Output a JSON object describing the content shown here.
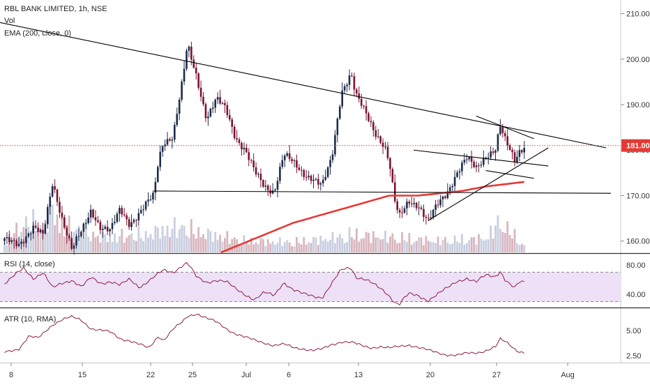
{
  "header": {
    "symbol_line": "RBL BANK LIMITED, 1h, NSE",
    "vol_label": "Vol",
    "ema_label": "EMA (200, close, 0)"
  },
  "price_tag": "181.00",
  "colors": {
    "up": "#1e2b4a",
    "down": "#7b1230",
    "ema": "#e53935",
    "rsi": "#8e1a47",
    "rsi_band": "#ede0f7",
    "atr": "#8e1a47",
    "trendline": "#000000",
    "price_tag": "#e53935",
    "vol": "#d9b6be"
  },
  "chart_data": [
    {
      "type": "line",
      "role": "price",
      "title": "RBL BANK LIMITED, 1h, NSE",
      "x_tick_labels": [
        "8",
        "15",
        "22",
        "25",
        "Jul",
        "6",
        "13",
        "20",
        "27",
        "Aug"
      ],
      "y_ticks": [
        160,
        170,
        180,
        190,
        200,
        210
      ],
      "ylim": [
        157.5,
        213
      ],
      "last_price": 181.0,
      "close_anchors": [
        [
          0,
          160
        ],
        [
          3,
          159.5
        ],
        [
          6,
          163
        ],
        [
          8,
          161
        ],
        [
          10,
          173
        ],
        [
          12,
          165
        ],
        [
          14,
          158
        ],
        [
          16,
          162
        ],
        [
          18,
          167
        ],
        [
          20,
          163
        ],
        [
          22,
          162
        ],
        [
          24,
          167
        ],
        [
          26,
          164
        ],
        [
          28,
          166
        ],
        [
          31,
          170
        ],
        [
          32,
          178
        ],
        [
          33,
          182
        ],
        [
          35,
          183
        ],
        [
          37,
          195
        ],
        [
          38,
          203
        ],
        [
          40,
          196
        ],
        [
          42,
          187
        ],
        [
          44,
          191
        ],
        [
          46,
          189
        ],
        [
          48,
          183
        ],
        [
          50,
          180
        ],
        [
          52,
          175
        ],
        [
          54,
          172
        ],
        [
          56,
          171
        ],
        [
          58,
          179
        ],
        [
          60,
          177
        ],
        [
          62,
          175
        ],
        [
          64,
          174
        ],
        [
          66,
          172
        ],
        [
          68,
          178
        ],
        [
          70,
          193
        ],
        [
          72,
          197
        ],
        [
          73,
          192
        ],
        [
          75,
          188
        ],
        [
          77,
          184
        ],
        [
          79,
          181
        ],
        [
          80,
          177
        ],
        [
          81,
          169
        ],
        [
          82,
          165
        ],
        [
          83,
          167
        ],
        [
          84,
          169
        ],
        [
          86,
          168
        ],
        [
          88,
          164
        ],
        [
          90,
          168
        ],
        [
          92,
          171
        ],
        [
          94,
          175
        ],
        [
          96,
          178
        ],
        [
          98,
          176
        ],
        [
          100,
          179
        ],
        [
          102,
          180
        ],
        [
          103,
          185
        ],
        [
          104,
          182
        ],
        [
          105,
          180
        ],
        [
          106,
          178
        ],
        [
          107,
          180
        ],
        [
          108,
          181
        ]
      ],
      "ema_anchors": [
        [
          45,
          157.5
        ],
        [
          60,
          164
        ],
        [
          70,
          167
        ],
        [
          80,
          170
        ],
        [
          86,
          170
        ],
        [
          95,
          171
        ],
        [
          100,
          172
        ],
        [
          108,
          173
        ]
      ],
      "volume_anchors": [
        [
          0,
          8
        ],
        [
          5,
          25
        ],
        [
          8,
          18
        ],
        [
          10,
          33
        ],
        [
          12,
          22
        ],
        [
          20,
          12
        ],
        [
          30,
          14
        ],
        [
          33,
          18
        ],
        [
          37,
          20
        ],
        [
          40,
          16
        ],
        [
          50,
          9
        ],
        [
          60,
          8
        ],
        [
          70,
          12
        ],
        [
          72,
          14
        ],
        [
          80,
          12
        ],
        [
          90,
          9
        ],
        [
          100,
          11
        ],
        [
          103,
          24
        ],
        [
          108,
          5
        ]
      ],
      "drawn_lines": [
        {
          "name": "upper-trendline",
          "from": [
            -3,
            208.5
          ],
          "to": [
            125,
            180.5
          ]
        },
        {
          "name": "support-line",
          "from": [
            31,
            171
          ],
          "to": [
            126,
            170.5
          ]
        },
        {
          "name": "lower-rising-line",
          "from": [
            88,
            164.5
          ],
          "to": [
            113,
            180.5
          ]
        },
        {
          "name": "channel-upper",
          "from": [
            85,
            180
          ],
          "to": [
            113,
            176.5
          ]
        },
        {
          "name": "channel-lower",
          "from": [
            100,
            175.5
          ],
          "to": [
            110,
            173.8
          ]
        },
        {
          "name": "triangle-top",
          "from": [
            98,
            187.5
          ],
          "to": [
            110,
            182.5
          ]
        }
      ]
    },
    {
      "type": "line",
      "role": "indicator",
      "title": "RSI (14, close)",
      "y_ticks": [
        40,
        80
      ],
      "ylim": [
        22,
        95
      ],
      "band": [
        30,
        70
      ],
      "anchors": [
        [
          0,
          55
        ],
        [
          4,
          75
        ],
        [
          6,
          62
        ],
        [
          8,
          70
        ],
        [
          10,
          48
        ],
        [
          12,
          55
        ],
        [
          14,
          60
        ],
        [
          16,
          50
        ],
        [
          18,
          62
        ],
        [
          20,
          55
        ],
        [
          22,
          58
        ],
        [
          24,
          52
        ],
        [
          26,
          60
        ],
        [
          28,
          50
        ],
        [
          31,
          63
        ],
        [
          33,
          72
        ],
        [
          35,
          70
        ],
        [
          37,
          80
        ],
        [
          38,
          83
        ],
        [
          40,
          62
        ],
        [
          42,
          56
        ],
        [
          44,
          60
        ],
        [
          46,
          57
        ],
        [
          48,
          47
        ],
        [
          50,
          40
        ],
        [
          52,
          33
        ],
        [
          54,
          42
        ],
        [
          56,
          38
        ],
        [
          58,
          57
        ],
        [
          60,
          46
        ],
        [
          62,
          40
        ],
        [
          64,
          38
        ],
        [
          66,
          36
        ],
        [
          68,
          54
        ],
        [
          70,
          73
        ],
        [
          72,
          77
        ],
        [
          73,
          64
        ],
        [
          75,
          60
        ],
        [
          77,
          52
        ],
        [
          79,
          44
        ],
        [
          80,
          38
        ],
        [
          81,
          30
        ],
        [
          82,
          26
        ],
        [
          83,
          34
        ],
        [
          84,
          40
        ],
        [
          86,
          38
        ],
        [
          88,
          32
        ],
        [
          90,
          40
        ],
        [
          92,
          48
        ],
        [
          94,
          58
        ],
        [
          96,
          62
        ],
        [
          98,
          56
        ],
        [
          100,
          66
        ],
        [
          102,
          65
        ],
        [
          103,
          72
        ],
        [
          104,
          60
        ],
        [
          105,
          53
        ],
        [
          106,
          48
        ],
        [
          107,
          56
        ],
        [
          108,
          57
        ]
      ]
    },
    {
      "type": "line",
      "role": "indicator",
      "title": "ATR (10, RMA)",
      "y_ticks": [
        2.5,
        5
      ],
      "ylim": [
        1.8,
        7.2
      ],
      "anchors": [
        [
          0,
          2.8
        ],
        [
          3,
          3.2
        ],
        [
          5,
          4.4
        ],
        [
          7,
          4.2
        ],
        [
          10,
          5.6
        ],
        [
          12,
          6.1
        ],
        [
          14,
          6.3
        ],
        [
          16,
          6.0
        ],
        [
          18,
          5.2
        ],
        [
          20,
          5.0
        ],
        [
          22,
          4.8
        ],
        [
          24,
          4.2
        ],
        [
          26,
          4.0
        ],
        [
          28,
          3.6
        ],
        [
          30,
          3.2
        ],
        [
          32,
          4.5
        ],
        [
          33,
          4.0
        ],
        [
          35,
          5.1
        ],
        [
          37,
          5.8
        ],
        [
          38,
          6.4
        ],
        [
          40,
          6.7
        ],
        [
          42,
          6.2
        ],
        [
          44,
          5.8
        ],
        [
          46,
          5.2
        ],
        [
          48,
          4.7
        ],
        [
          50,
          4.3
        ],
        [
          52,
          4.0
        ],
        [
          54,
          3.8
        ],
        [
          56,
          3.5
        ],
        [
          58,
          3.6
        ],
        [
          60,
          3.3
        ],
        [
          62,
          3.2
        ],
        [
          64,
          3.0
        ],
        [
          66,
          3.1
        ],
        [
          68,
          3.6
        ],
        [
          70,
          3.9
        ],
        [
          72,
          3.8
        ],
        [
          74,
          3.5
        ],
        [
          76,
          3.3
        ],
        [
          78,
          3.4
        ],
        [
          80,
          3.2
        ],
        [
          82,
          3.4
        ],
        [
          84,
          3.6
        ],
        [
          86,
          3.3
        ],
        [
          88,
          3.0
        ],
        [
          90,
          2.8
        ],
        [
          92,
          2.6
        ],
        [
          94,
          2.5
        ],
        [
          96,
          2.7
        ],
        [
          98,
          2.8
        ],
        [
          100,
          3.0
        ],
        [
          102,
          3.3
        ],
        [
          103,
          4.1
        ],
        [
          104,
          3.9
        ],
        [
          105,
          3.6
        ],
        [
          106,
          3.2
        ],
        [
          107,
          2.9
        ],
        [
          108,
          2.8
        ]
      ]
    }
  ],
  "rsi_pane": {
    "label": "RSI (14, close)"
  },
  "atr_pane": {
    "label": "ATR (10, RMA)"
  }
}
